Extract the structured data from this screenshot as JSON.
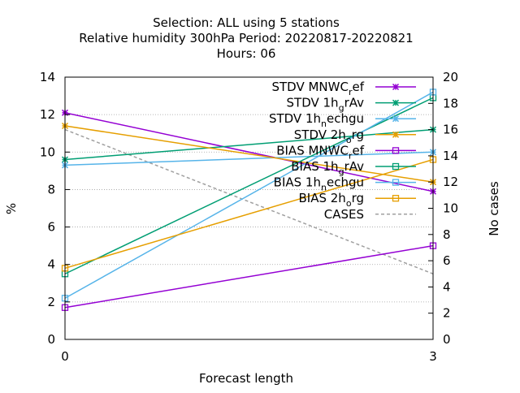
{
  "chart_data": {
    "type": "line",
    "title_lines": [
      "Selection: ALL using     5 stations",
      "Relative humidity 300hPa   Period: 20220817-20220821",
      "Hours:  06"
    ],
    "xlabel": "Forecast length",
    "ylabel": "%",
    "y2label": "No cases",
    "x": [
      0,
      3
    ],
    "x_ticks": [
      "0",
      "3"
    ],
    "xlim": [
      0,
      3
    ],
    "ylim": [
      0,
      14
    ],
    "y_ticks": [
      "0",
      "2",
      "4",
      "6",
      "8",
      "10",
      "12",
      "14"
    ],
    "y2lim": [
      0,
      20
    ],
    "y2_ticks": [
      "0",
      "2",
      "4",
      "6",
      "8",
      "10",
      "12",
      "14",
      "16",
      "18",
      "20"
    ],
    "grid": true,
    "legend_placement": "top-right",
    "series": [
      {
        "name": "STDV MNWC_ref",
        "base": "STDV MNWC",
        "sub": "r",
        "rest": "ef",
        "color": "#9400d3",
        "marker": "x",
        "dash": false,
        "axis": "y",
        "values": [
          12.1,
          7.9
        ]
      },
      {
        "name": "STDV 1h_grAv",
        "base": "STDV 1h",
        "sub": "g",
        "rest": "rAv",
        "color": "#009e73",
        "marker": "x",
        "dash": false,
        "axis": "y",
        "values": [
          9.6,
          11.2
        ]
      },
      {
        "name": "STDV 1h_nechgu",
        "base": "STDV 1h",
        "sub": "n",
        "rest": "echgu",
        "color": "#56b4e9",
        "marker": "x",
        "dash": false,
        "axis": "y",
        "values": [
          9.3,
          10.0
        ]
      },
      {
        "name": "STDV 2h_org",
        "base": "STDV 2h",
        "sub": "o",
        "rest": "rg",
        "color": "#e69f00",
        "marker": "x",
        "dash": false,
        "axis": "y",
        "values": [
          11.4,
          8.4
        ]
      },
      {
        "name": "BIAS MNWC_ref",
        "base": "BIAS MNWC",
        "sub": "r",
        "rest": "ef",
        "color": "#9400d3",
        "marker": "square",
        "dash": false,
        "axis": "y",
        "values": [
          1.7,
          5.0
        ]
      },
      {
        "name": "BIAS 1h_grAv",
        "base": "BIAS 1h",
        "sub": "g",
        "rest": "rAv",
        "color": "#009e73",
        "marker": "square",
        "dash": false,
        "axis": "y",
        "values": [
          3.5,
          12.9
        ]
      },
      {
        "name": "BIAS 1h_nechgu",
        "base": "BIAS 1h",
        "sub": "n",
        "rest": "echgu",
        "color": "#56b4e9",
        "marker": "square",
        "dash": false,
        "axis": "y",
        "values": [
          2.2,
          13.2
        ]
      },
      {
        "name": "BIAS 2h_org",
        "base": "BIAS 2h",
        "sub": "o",
        "rest": "rg",
        "color": "#e69f00",
        "marker": "square",
        "dash": false,
        "axis": "y",
        "values": [
          3.8,
          9.6
        ]
      },
      {
        "name": "CASES",
        "base": "CASES",
        "sub": "",
        "rest": "",
        "color": "#a0a0a0",
        "marker": "none",
        "dash": true,
        "axis": "y2",
        "values": [
          16.0,
          5.0
        ]
      }
    ]
  }
}
